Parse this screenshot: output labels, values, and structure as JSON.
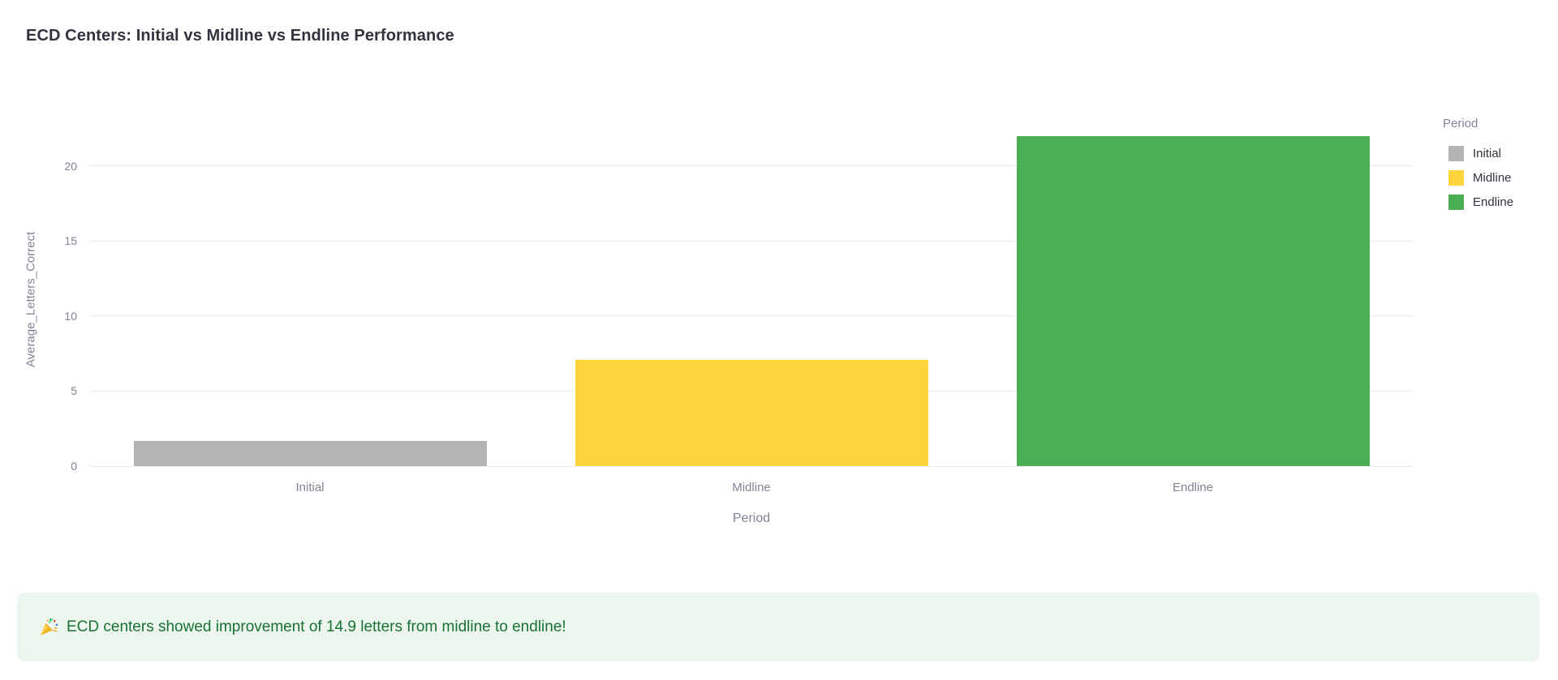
{
  "chart_data": {
    "type": "bar",
    "title": "ECD Centers: Initial vs Midline vs Endline Performance",
    "categories": [
      "Initial",
      "Midline",
      "Endline"
    ],
    "values": [
      1.7,
      7.1,
      22.0
    ],
    "bar_colors": [
      "#b3b3b3",
      "#ffd43b",
      "#4bae52"
    ],
    "xlabel": "Period",
    "ylabel": "Average_Letters_Correct",
    "ylim": [
      0,
      22.2
    ],
    "yticks": [
      0,
      5,
      10,
      15,
      20
    ],
    "grid": true,
    "legend": {
      "title": "Period",
      "position": "top-right",
      "entries": [
        {
          "label": "Initial",
          "color": "#b3b3b3"
        },
        {
          "label": "Midline",
          "color": "#ffd43b"
        },
        {
          "label": "Endline",
          "color": "#4bae52"
        }
      ]
    }
  },
  "message": {
    "icon": "party-popper",
    "icon_char": "🎉",
    "text": "ECD centers showed improvement of 14.9 letters from midline to endline!"
  },
  "colors": {
    "title_text": "#31333f",
    "axis_text": "#808495",
    "legend_label_text": "#31333f",
    "gridline": "#e6eaf1",
    "success_bg": "#edf6ee",
    "success_text": "#177233",
    "background": "#ffffff"
  }
}
